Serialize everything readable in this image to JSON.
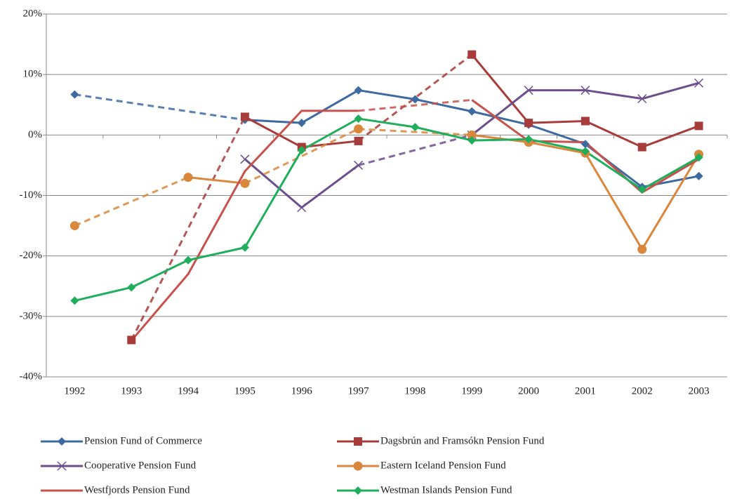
{
  "chart_data": {
    "type": "line",
    "categories": [
      "1992",
      "1993",
      "1994",
      "1995",
      "1996",
      "1997",
      "1998",
      "1999",
      "2000",
      "2001",
      "2002",
      "2003"
    ],
    "ylim": [
      -40,
      20
    ],
    "yticks": [
      {
        "value": -40,
        "label": "-40%"
      },
      {
        "value": -30,
        "label": "-30%"
      },
      {
        "value": -20,
        "label": "-20%"
      },
      {
        "value": -10,
        "label": "-10%"
      },
      {
        "value": 0,
        "label": "0%"
      },
      {
        "value": 10,
        "label": "10%"
      },
      {
        "value": 20,
        "label": "20%"
      }
    ],
    "grid": true,
    "legend": "bottom",
    "series": [
      {
        "name": "Pension Fund of Commerce",
        "color": "#3d6aa0",
        "marker": "diamond",
        "values": [
          6.7,
          null,
          null,
          2.5,
          2.0,
          7.4,
          5.9,
          3.9,
          1.7,
          -1.5,
          -8.6,
          -6.8
        ]
      },
      {
        "name": "Dagsbrún and Framsókn Pension Fund",
        "color": "#a83c3a",
        "marker": "square",
        "values": [
          null,
          -33.9,
          null,
          3.0,
          -2.0,
          -1.0,
          null,
          13.3,
          2.0,
          2.3,
          -2.0,
          1.5
        ]
      },
      {
        "name": "Cooperative Pension Fund",
        "color": "#6d4e8c",
        "marker": "x",
        "values": [
          null,
          null,
          null,
          -4.0,
          -12.0,
          -5.0,
          null,
          0.0,
          7.4,
          7.4,
          6.0,
          8.6
        ]
      },
      {
        "name": "Eastern Iceland Pension Fund",
        "color": "#d9873c",
        "marker": "circle",
        "values": [
          -15.0,
          null,
          -7.0,
          -8.0,
          null,
          1.0,
          null,
          0.0,
          -1.2,
          -3.0,
          -18.9,
          -3.2
        ]
      },
      {
        "name": "Westfjords Pension Fund",
        "color": "#c8514e",
        "marker": "none",
        "values": [
          null,
          -34.0,
          -23.0,
          -6.0,
          4.0,
          4.0,
          null,
          5.8,
          -1.0,
          -1.2,
          -9.5,
          -4.0
        ]
      },
      {
        "name": "Westman Islands Pension Fund",
        "color": "#1fae5b",
        "marker": "diamond",
        "values": [
          -27.4,
          -25.2,
          -20.7,
          -18.6,
          -2.5,
          2.7,
          1.3,
          -0.9,
          -0.7,
          -2.7,
          -9.0,
          -3.7
        ]
      }
    ]
  }
}
